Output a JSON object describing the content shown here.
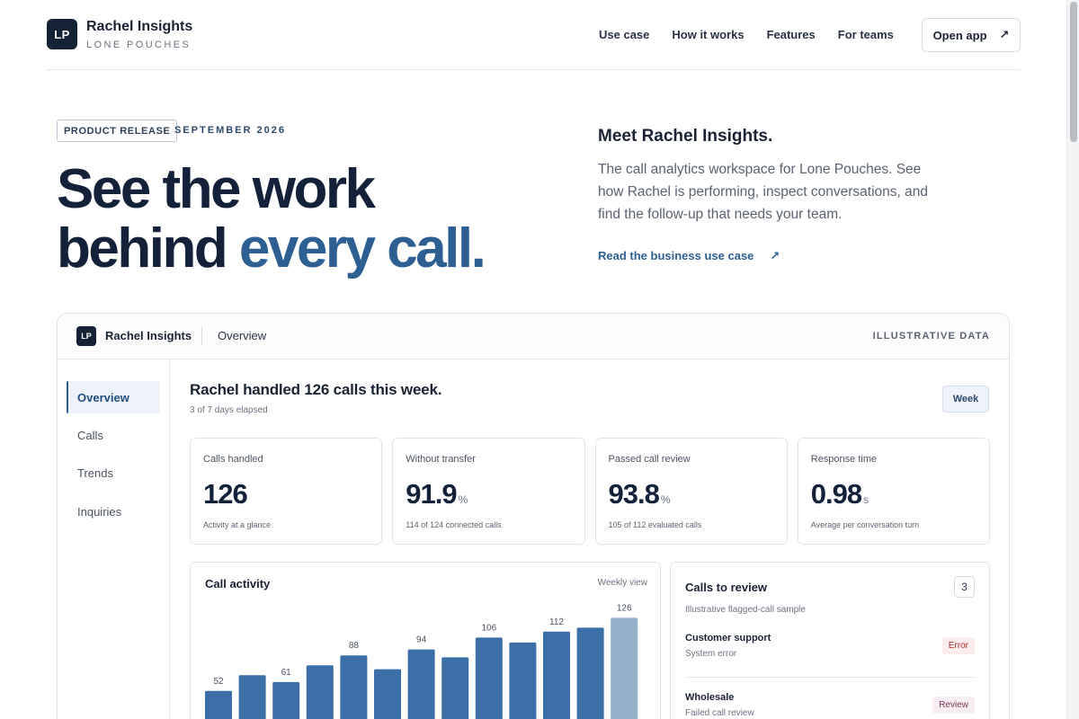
{
  "header": {
    "logo": "LP",
    "title": "Rachel Insights",
    "subtitle": "LONE POUCHES",
    "nav": [
      "Use case",
      "How it works",
      "Features",
      "For teams"
    ],
    "open_app": "Open app",
    "open_app_icon": "↗"
  },
  "hero": {
    "badge": "PRODUCT RELEASE",
    "date": "SEPTEMBER 2026",
    "title_line1": "See the work",
    "title_line2_a": "behind ",
    "title_line2_b": "every call.",
    "meet": "Meet Rachel Insights.",
    "description": "The call analytics workspace for Lone Pouches. See how Rachel is performing, inspect conversations, and find the follow-up that needs your team.",
    "link": "Read the business use case",
    "link_icon": "↗"
  },
  "app": {
    "logo": "LP",
    "name": "Rachel Insights",
    "crumb": "Overview",
    "illustrative": "ILLUSTRATIVE DATA",
    "sidebar": [
      "Overview",
      "Calls",
      "Trends",
      "Inquiries"
    ],
    "main_title": "Rachel handled 126 calls this week.",
    "main_sub": "3 of 7 days elapsed",
    "period": "Week",
    "kpis": [
      {
        "label": "Calls handled",
        "value": "126",
        "unit": "",
        "note": "Activity at a glance"
      },
      {
        "label": "Without transfer",
        "value": "91.9",
        "unit": "%",
        "note": "114 of 124 connected calls"
      },
      {
        "label": "Passed call review",
        "value": "93.8",
        "unit": "%",
        "note": "105 of 112 evaluated calls"
      },
      {
        "label": "Response time",
        "value": "0.98",
        "unit": "s",
        "note": "Average per conversation turn"
      }
    ],
    "chart": {
      "title": "Call activity",
      "view": "Weekly view"
    },
    "review": {
      "title": "Calls to review",
      "count": "3",
      "subtitle": "Illustrative flagged-call sample",
      "items": [
        {
          "title": "Customer support",
          "sub": "System error",
          "badge": "Error"
        },
        {
          "title": "Wholesale",
          "sub": "Failed call review",
          "badge": "Review"
        }
      ]
    }
  },
  "chart_data": {
    "type": "bar",
    "title": "Call activity",
    "values": [
      52,
      68,
      61,
      78,
      88,
      74,
      94,
      86,
      106,
      101,
      112,
      116,
      126
    ],
    "labels": [
      "52",
      "",
      "61",
      "",
      "88",
      "",
      "94",
      "",
      "106",
      "",
      "112",
      "",
      "126"
    ],
    "ylim": [
      0,
      140
    ],
    "colors": {
      "bar": "#3c6fa8",
      "current": "#94b1cc"
    }
  }
}
